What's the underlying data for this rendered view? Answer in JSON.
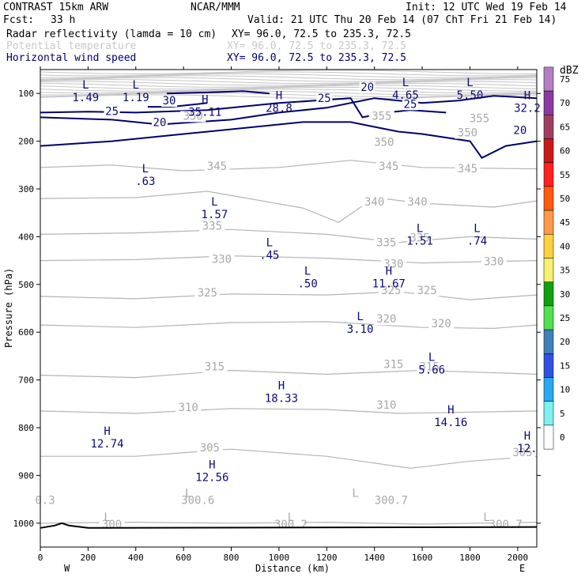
{
  "header": {
    "model": "CONTRAST 15km ARW",
    "org": "NCAR/MMM",
    "init": "Init: 12 UTC Wed 19 Feb 14",
    "fcst_label": "Fcst:",
    "fcst_value": "33 h",
    "valid": "Valid: 21 UTC Thu 20 Feb 14 (07 ChT Fri 21 Feb 14)",
    "fields": [
      {
        "name": "Radar reflectivity (lamda = 10 cm)",
        "xy": "XY=  96.0, 72.5 to 235.3, 72.5",
        "color": "#000000"
      },
      {
        "name": "Potential temperature",
        "xy": "XY=  96.0, 72.5 to 235.3, 72.5",
        "color": "#c8c8c8"
      },
      {
        "name": "Horizontal wind speed",
        "xy": "XY=  96.0, 72.5 to 235.3, 72.5",
        "color": "#00006e"
      }
    ]
  },
  "axes": {
    "xlabel": "Distance (km)",
    "ylabel": "Pressure (hPa)",
    "x_ticks": [
      "0",
      "200",
      "400",
      "600",
      "800",
      "1000",
      "1200",
      "1400",
      "1600",
      "1800",
      "2000"
    ],
    "y_ticks": [
      "100",
      "200",
      "300",
      "400",
      "500",
      "600",
      "700",
      "800",
      "900",
      "1000"
    ],
    "west": "W",
    "east": "E"
  },
  "colorbar": {
    "unit": "dBZ",
    "levels": [
      "75",
      "70",
      "65",
      "60",
      "55",
      "50",
      "45",
      "40",
      "35",
      "30",
      "25",
      "20",
      "15",
      "10",
      "5",
      "0"
    ],
    "colors": [
      "#b280c0",
      "#8a3aa0",
      "#a04060",
      "#c81818",
      "#ff2020",
      "#ff5a10",
      "#ff9848",
      "#ffd040",
      "#f6f070",
      "#10a010",
      "#50e050",
      "#4080b8",
      "#3050e0",
      "#28a8f0",
      "#80f0f0",
      "#ffffff"
    ]
  },
  "chart_data": {
    "type": "cross-section contour",
    "x_range_km": [
      0,
      2080
    ],
    "y_range_hPa": [
      50,
      1050
    ],
    "y_scale": "linear, inverted",
    "theta_isentropes": [
      {
        "label": "345",
        "points": [
          [
            0,
            255
          ],
          [
            300,
            250
          ],
          [
            600,
            262
          ],
          [
            1000,
            255
          ],
          [
            1300,
            240
          ],
          [
            1600,
            255
          ],
          [
            2080,
            258
          ]
        ]
      },
      {
        "label": "340",
        "points": [
          [
            0,
            320
          ],
          [
            400,
            318
          ],
          [
            700,
            305
          ],
          [
            1100,
            340
          ],
          [
            1250,
            370
          ],
          [
            1400,
            318
          ],
          [
            1600,
            330
          ],
          [
            1900,
            338
          ],
          [
            2080,
            325
          ]
        ]
      },
      {
        "label": "335",
        "points": [
          [
            0,
            395
          ],
          [
            400,
            392
          ],
          [
            800,
            385
          ],
          [
            1200,
            395
          ],
          [
            1500,
            412
          ],
          [
            1800,
            400
          ],
          [
            2080,
            405
          ]
        ]
      },
      {
        "label": "330",
        "points": [
          [
            0,
            450
          ],
          [
            400,
            448
          ],
          [
            800,
            440
          ],
          [
            1200,
            445
          ],
          [
            1600,
            455
          ],
          [
            2080,
            450
          ]
        ]
      },
      {
        "label": "325",
        "points": [
          [
            0,
            525
          ],
          [
            400,
            530
          ],
          [
            800,
            520
          ],
          [
            1200,
            522
          ],
          [
            1500,
            515
          ],
          [
            1800,
            532
          ],
          [
            2080,
            522
          ]
        ]
      },
      {
        "label": "320",
        "points": [
          [
            0,
            585
          ],
          [
            400,
            590
          ],
          [
            800,
            580
          ],
          [
            1200,
            578
          ],
          [
            1600,
            590
          ],
          [
            1900,
            592
          ],
          [
            2080,
            585
          ]
        ]
      },
      {
        "label": "315",
        "points": [
          [
            0,
            690
          ],
          [
            400,
            695
          ],
          [
            800,
            680
          ],
          [
            1200,
            688
          ],
          [
            1600,
            680
          ],
          [
            2080,
            688
          ]
        ]
      },
      {
        "label": "310",
        "points": [
          [
            0,
            765
          ],
          [
            400,
            770
          ],
          [
            800,
            760
          ],
          [
            1200,
            762
          ],
          [
            1500,
            770
          ],
          [
            2080,
            765
          ]
        ]
      },
      {
        "label": "305",
        "points": [
          [
            0,
            860
          ],
          [
            400,
            860
          ],
          [
            800,
            845
          ],
          [
            1200,
            860
          ],
          [
            1550,
            885
          ],
          [
            1800,
            870
          ],
          [
            2080,
            860
          ]
        ]
      },
      {
        "label": "300",
        "points": [
          [
            0,
            1000
          ],
          [
            400,
            998
          ],
          [
            800,
            1000
          ],
          [
            1200,
            998
          ],
          [
            1600,
            1002
          ],
          [
            2080,
            998
          ]
        ]
      }
    ],
    "theta_labels": [
      {
        "text": "355",
        "x": 1430,
        "p": 155
      },
      {
        "text": "355",
        "x": 1840,
        "p": 160
      },
      {
        "text": "350",
        "x": 640,
        "p": 155
      },
      {
        "text": "350",
        "x": 1440,
        "p": 210
      },
      {
        "text": "350",
        "x": 1790,
        "p": 190
      },
      {
        "text": "345",
        "x": 740,
        "p": 260
      },
      {
        "text": "345",
        "x": 1460,
        "p": 260
      },
      {
        "text": "345",
        "x": 1790,
        "p": 265
      },
      {
        "text": "340",
        "x": 1400,
        "p": 335
      },
      {
        "text": "340",
        "x": 1580,
        "p": 335
      },
      {
        "text": "335",
        "x": 720,
        "p": 385
      },
      {
        "text": "335",
        "x": 1450,
        "p": 420
      },
      {
        "text": "335",
        "x": 1590,
        "p": 410
      },
      {
        "text": "330",
        "x": 760,
        "p": 455
      },
      {
        "text": "330",
        "x": 1480,
        "p": 465
      },
      {
        "text": "330",
        "x": 1900,
        "p": 460
      },
      {
        "text": "325",
        "x": 700,
        "p": 525
      },
      {
        "text": "325",
        "x": 1470,
        "p": 520
      },
      {
        "text": "325",
        "x": 1620,
        "p": 520
      },
      {
        "text": "320",
        "x": 1450,
        "p": 580
      },
      {
        "text": "320",
        "x": 1680,
        "p": 590
      },
      {
        "text": "315",
        "x": 730,
        "p": 680
      },
      {
        "text": "315",
        "x": 1480,
        "p": 675
      },
      {
        "text": "315",
        "x": 1630,
        "p": 680
      },
      {
        "text": "310",
        "x": 620,
        "p": 765
      },
      {
        "text": "310",
        "x": 1450,
        "p": 760
      },
      {
        "text": "305",
        "x": 710,
        "p": 850
      },
      {
        "text": "305",
        "x": 2020,
        "p": 860
      },
      {
        "text": "300",
        "x": 300,
        "p": 1010
      },
      {
        "text": "300.2",
        "x": 1050,
        "p": 1010
      },
      {
        "text": "300.7",
        "x": 1470,
        "p": 960
      },
      {
        "text": "300.7",
        "x": 1950,
        "p": 1010
      },
      {
        "text": "300.6",
        "x": 660,
        "p": 960
      },
      {
        "text": "0.3",
        "x": 20,
        "p": 960
      }
    ],
    "wind_contours": [
      {
        "label": "20",
        "points": [
          [
            0,
            150
          ],
          [
            300,
            155
          ],
          [
            500,
            165
          ],
          [
            800,
            155
          ],
          [
            1000,
            140
          ],
          [
            1200,
            130
          ],
          [
            1400,
            110
          ],
          [
            1600,
            120
          ],
          [
            1750,
            115
          ],
          [
            1900,
            105
          ],
          [
            2080,
            110
          ]
        ]
      },
      {
        "label": "20",
        "points": [
          [
            0,
            210
          ],
          [
            300,
            200
          ],
          [
            600,
            185
          ],
          [
            900,
            170
          ],
          [
            1100,
            160
          ],
          [
            1300,
            160
          ],
          [
            1400,
            170
          ],
          [
            1500,
            180
          ],
          [
            1600,
            185
          ],
          [
            1800,
            200
          ],
          [
            1850,
            235
          ],
          [
            1950,
            210
          ],
          [
            2080,
            200
          ]
        ]
      },
      {
        "label": "25",
        "points": [
          [
            0,
            140
          ],
          [
            200,
            138
          ],
          [
            400,
            140
          ],
          [
            700,
            135
          ],
          [
            900,
            125
          ],
          [
            1000,
            120
          ],
          [
            1150,
            115
          ],
          [
            1300,
            110
          ],
          [
            1350,
            150
          ],
          [
            1450,
            140
          ],
          [
            1550,
            135
          ],
          [
            1700,
            140
          ]
        ]
      },
      {
        "label": "30",
        "points": [
          [
            450,
            128
          ],
          [
            550,
            128
          ],
          [
            700,
            120
          ]
        ]
      },
      {
        "label": "35",
        "points": [
          [
            530,
            100
          ],
          [
            700,
            98
          ],
          [
            850,
            95
          ],
          [
            960,
            100
          ]
        ]
      }
    ],
    "wind_labels": [
      {
        "text": "20",
        "x": 1370,
        "p": 95
      },
      {
        "text": "20",
        "x": 500,
        "p": 168
      },
      {
        "text": "20",
        "x": 2010,
        "p": 185
      },
      {
        "text": "25",
        "x": 300,
        "p": 145
      },
      {
        "text": "25",
        "x": 1190,
        "p": 118
      },
      {
        "text": "25",
        "x": 1550,
        "p": 130
      },
      {
        "text": "30",
        "x": 540,
        "p": 123
      }
    ],
    "extrema": [
      {
        "kind": "L",
        "value": "1.49",
        "x": 190,
        "p": 90,
        "field": "wind"
      },
      {
        "kind": "L",
        "value": "1.19",
        "x": 400,
        "p": 90,
        "field": "wind"
      },
      {
        "kind": "H",
        "value": "35.11",
        "x": 690,
        "p": 120,
        "field": "wind"
      },
      {
        "kind": "H",
        "value": "28.8",
        "x": 1000,
        "p": 112,
        "field": "wind"
      },
      {
        "kind": "L",
        "value": "4.65",
        "x": 1530,
        "p": 85,
        "field": "wind"
      },
      {
        "kind": "L",
        "value": "5.50",
        "x": 1800,
        "p": 85,
        "field": "wind"
      },
      {
        "kind": "H",
        "value": "32.2",
        "x": 2040,
        "p": 112,
        "field": "wind"
      },
      {
        "kind": "L",
        "value": ".63",
        "x": 440,
        "p": 265,
        "field": "wind"
      },
      {
        "kind": "L",
        "value": "1.57",
        "x": 730,
        "p": 335,
        "field": "wind"
      },
      {
        "kind": "L",
        "value": "1.51",
        "x": 1590,
        "p": 390,
        "field": "wind"
      },
      {
        "kind": "L",
        "value": ".74",
        "x": 1830,
        "p": 390,
        "field": "wind"
      },
      {
        "kind": "L",
        "value": ".45",
        "x": 960,
        "p": 420,
        "field": "wind"
      },
      {
        "kind": "L",
        "value": ".50",
        "x": 1120,
        "p": 480,
        "field": "wind"
      },
      {
        "kind": "H",
        "value": "11.67",
        "x": 1460,
        "p": 480,
        "field": "wind"
      },
      {
        "kind": "L",
        "value": "3.10",
        "x": 1340,
        "p": 575,
        "field": "wind"
      },
      {
        "kind": "L",
        "value": "5.66",
        "x": 1640,
        "p": 660,
        "field": "wind"
      },
      {
        "kind": "H",
        "value": "18.33",
        "x": 1010,
        "p": 720,
        "field": "wind"
      },
      {
        "kind": "H",
        "value": "14.16",
        "x": 1720,
        "p": 770,
        "field": "wind"
      },
      {
        "kind": "H",
        "value": "12.74",
        "x": 280,
        "p": 815,
        "field": "wind"
      },
      {
        "kind": "H",
        "value": "12.",
        "x": 2040,
        "p": 825,
        "field": "wind"
      },
      {
        "kind": "H",
        "value": "12.56",
        "x": 720,
        "p": 885,
        "field": "wind"
      },
      {
        "kind": "L",
        "value": "",
        "x": 620,
        "p": 945,
        "field": "theta"
      },
      {
        "kind": "L",
        "value": "",
        "x": 1320,
        "p": 945,
        "field": "theta"
      },
      {
        "kind": "L",
        "value": "",
        "x": 280,
        "p": 995,
        "field": "theta"
      },
      {
        "kind": "L",
        "value": "",
        "x": 1050,
        "p": 995,
        "field": "theta"
      },
      {
        "kind": "L",
        "value": "",
        "x": 1870,
        "p": 995,
        "field": "theta"
      }
    ],
    "surface_pressure": [
      [
        0,
        1010
      ],
      [
        60,
        1005
      ],
      [
        90,
        1000
      ],
      [
        120,
        1005
      ],
      [
        200,
        1010
      ],
      [
        2080,
        1008
      ]
    ]
  }
}
